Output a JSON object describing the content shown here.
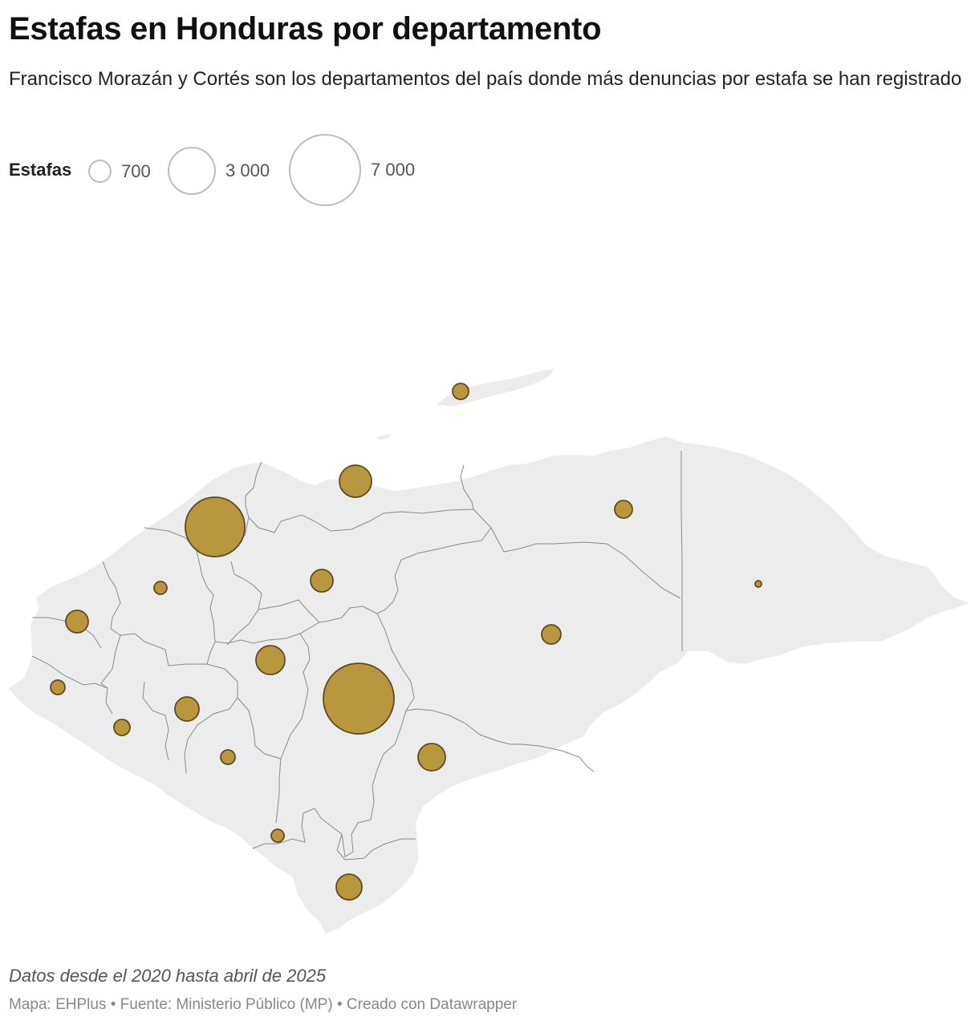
{
  "header": {
    "title": "Estafas en Honduras por departamento",
    "subtitle": "Francisco Morazán y Cortés son los departamentos del país donde más denuncias por estafa se han registrado"
  },
  "legend": {
    "title": "Estafas",
    "items": [
      {
        "value": 700,
        "label": "700"
      },
      {
        "value": 3000,
        "label": "3 000"
      },
      {
        "value": 7000,
        "label": "7 000"
      }
    ]
  },
  "map": {
    "land_color": "#ececec",
    "border_color": "#8a8a8a",
    "bubble_color": "#b8973f",
    "bubble_stroke": "#5e4b22"
  },
  "note": "Datos desde el 2020 hasta abril de 2025",
  "footer": "Mapa: EHPlus • Fuente: Ministerio Público (MP) • Creado con Datawrapper"
}
